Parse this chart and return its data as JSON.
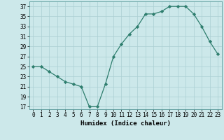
{
  "x": [
    0,
    1,
    2,
    3,
    4,
    5,
    6,
    7,
    8,
    9,
    10,
    11,
    12,
    13,
    14,
    15,
    16,
    17,
    18,
    19,
    20,
    21,
    22,
    23
  ],
  "y": [
    25,
    25,
    24,
    23,
    22,
    21.5,
    21,
    17,
    17,
    21.5,
    27,
    29.5,
    31.5,
    33,
    35.5,
    35.5,
    36,
    37,
    37,
    37,
    35.5,
    33,
    30,
    27.5
  ],
  "xlabel": "Humidex (Indice chaleur)",
  "xlim": [
    -0.5,
    23.5
  ],
  "ylim": [
    16.5,
    38
  ],
  "yticks": [
    17,
    19,
    21,
    23,
    25,
    27,
    29,
    31,
    33,
    35,
    37
  ],
  "xticks": [
    0,
    1,
    2,
    3,
    4,
    5,
    6,
    7,
    8,
    9,
    10,
    11,
    12,
    13,
    14,
    15,
    16,
    17,
    18,
    19,
    20,
    21,
    22,
    23
  ],
  "line_color": "#2d7d6d",
  "bg_color": "#cce8ea",
  "grid_color": "#aacfd3",
  "tick_fontsize": 5.5,
  "xlabel_fontsize": 6.5
}
